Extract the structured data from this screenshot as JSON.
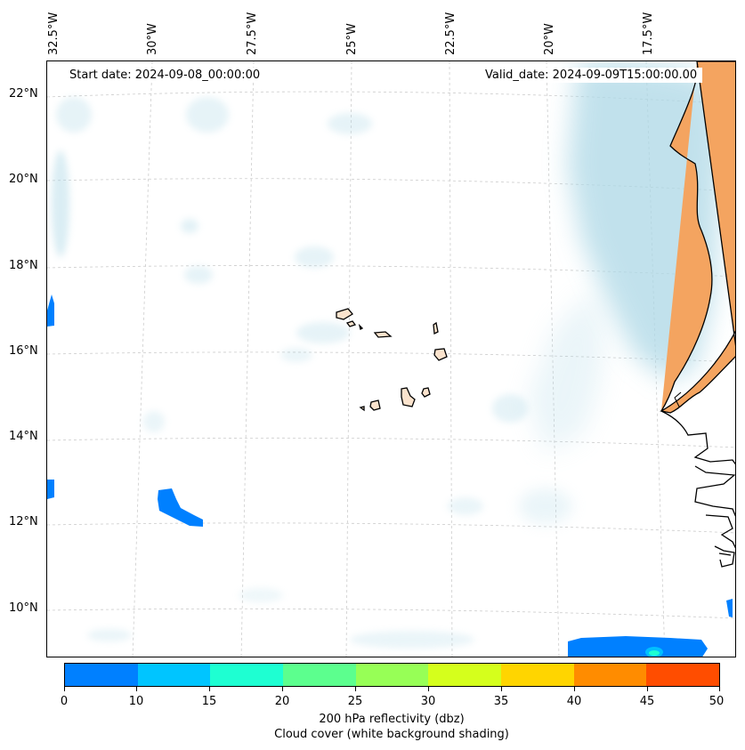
{
  "map": {
    "start_date": "Start date: 2024-09-08_00:00:00",
    "valid_date": "Valid_date: 2024-09-09T15:00:00.00",
    "longitude_labels": [
      "32.5°W",
      "30°W",
      "27.5°W",
      "25°W",
      "22.5°W",
      "20°W",
      "17.5°W"
    ],
    "latitude_labels": [
      "22°N",
      "20°N",
      "18°N",
      "16°N",
      "14°N",
      "12°N",
      "10°N"
    ],
    "land_color": "#f4a460",
    "cloud_color": "#add8e6"
  },
  "colorbar": {
    "ticks": [
      "0",
      "10",
      "15",
      "20",
      "25",
      "30",
      "35",
      "40",
      "45",
      "50"
    ],
    "colors": [
      "#0080ff",
      "#00c5ff",
      "#1effd2",
      "#5cff8e",
      "#97ff56",
      "#d5ff1c",
      "#ffd500",
      "#ff8c00",
      "#ff4d00"
    ],
    "label_line1": "200 hPa reflectivity (dbz)",
    "label_line2": "Cloud cover (white background shading)"
  }
}
